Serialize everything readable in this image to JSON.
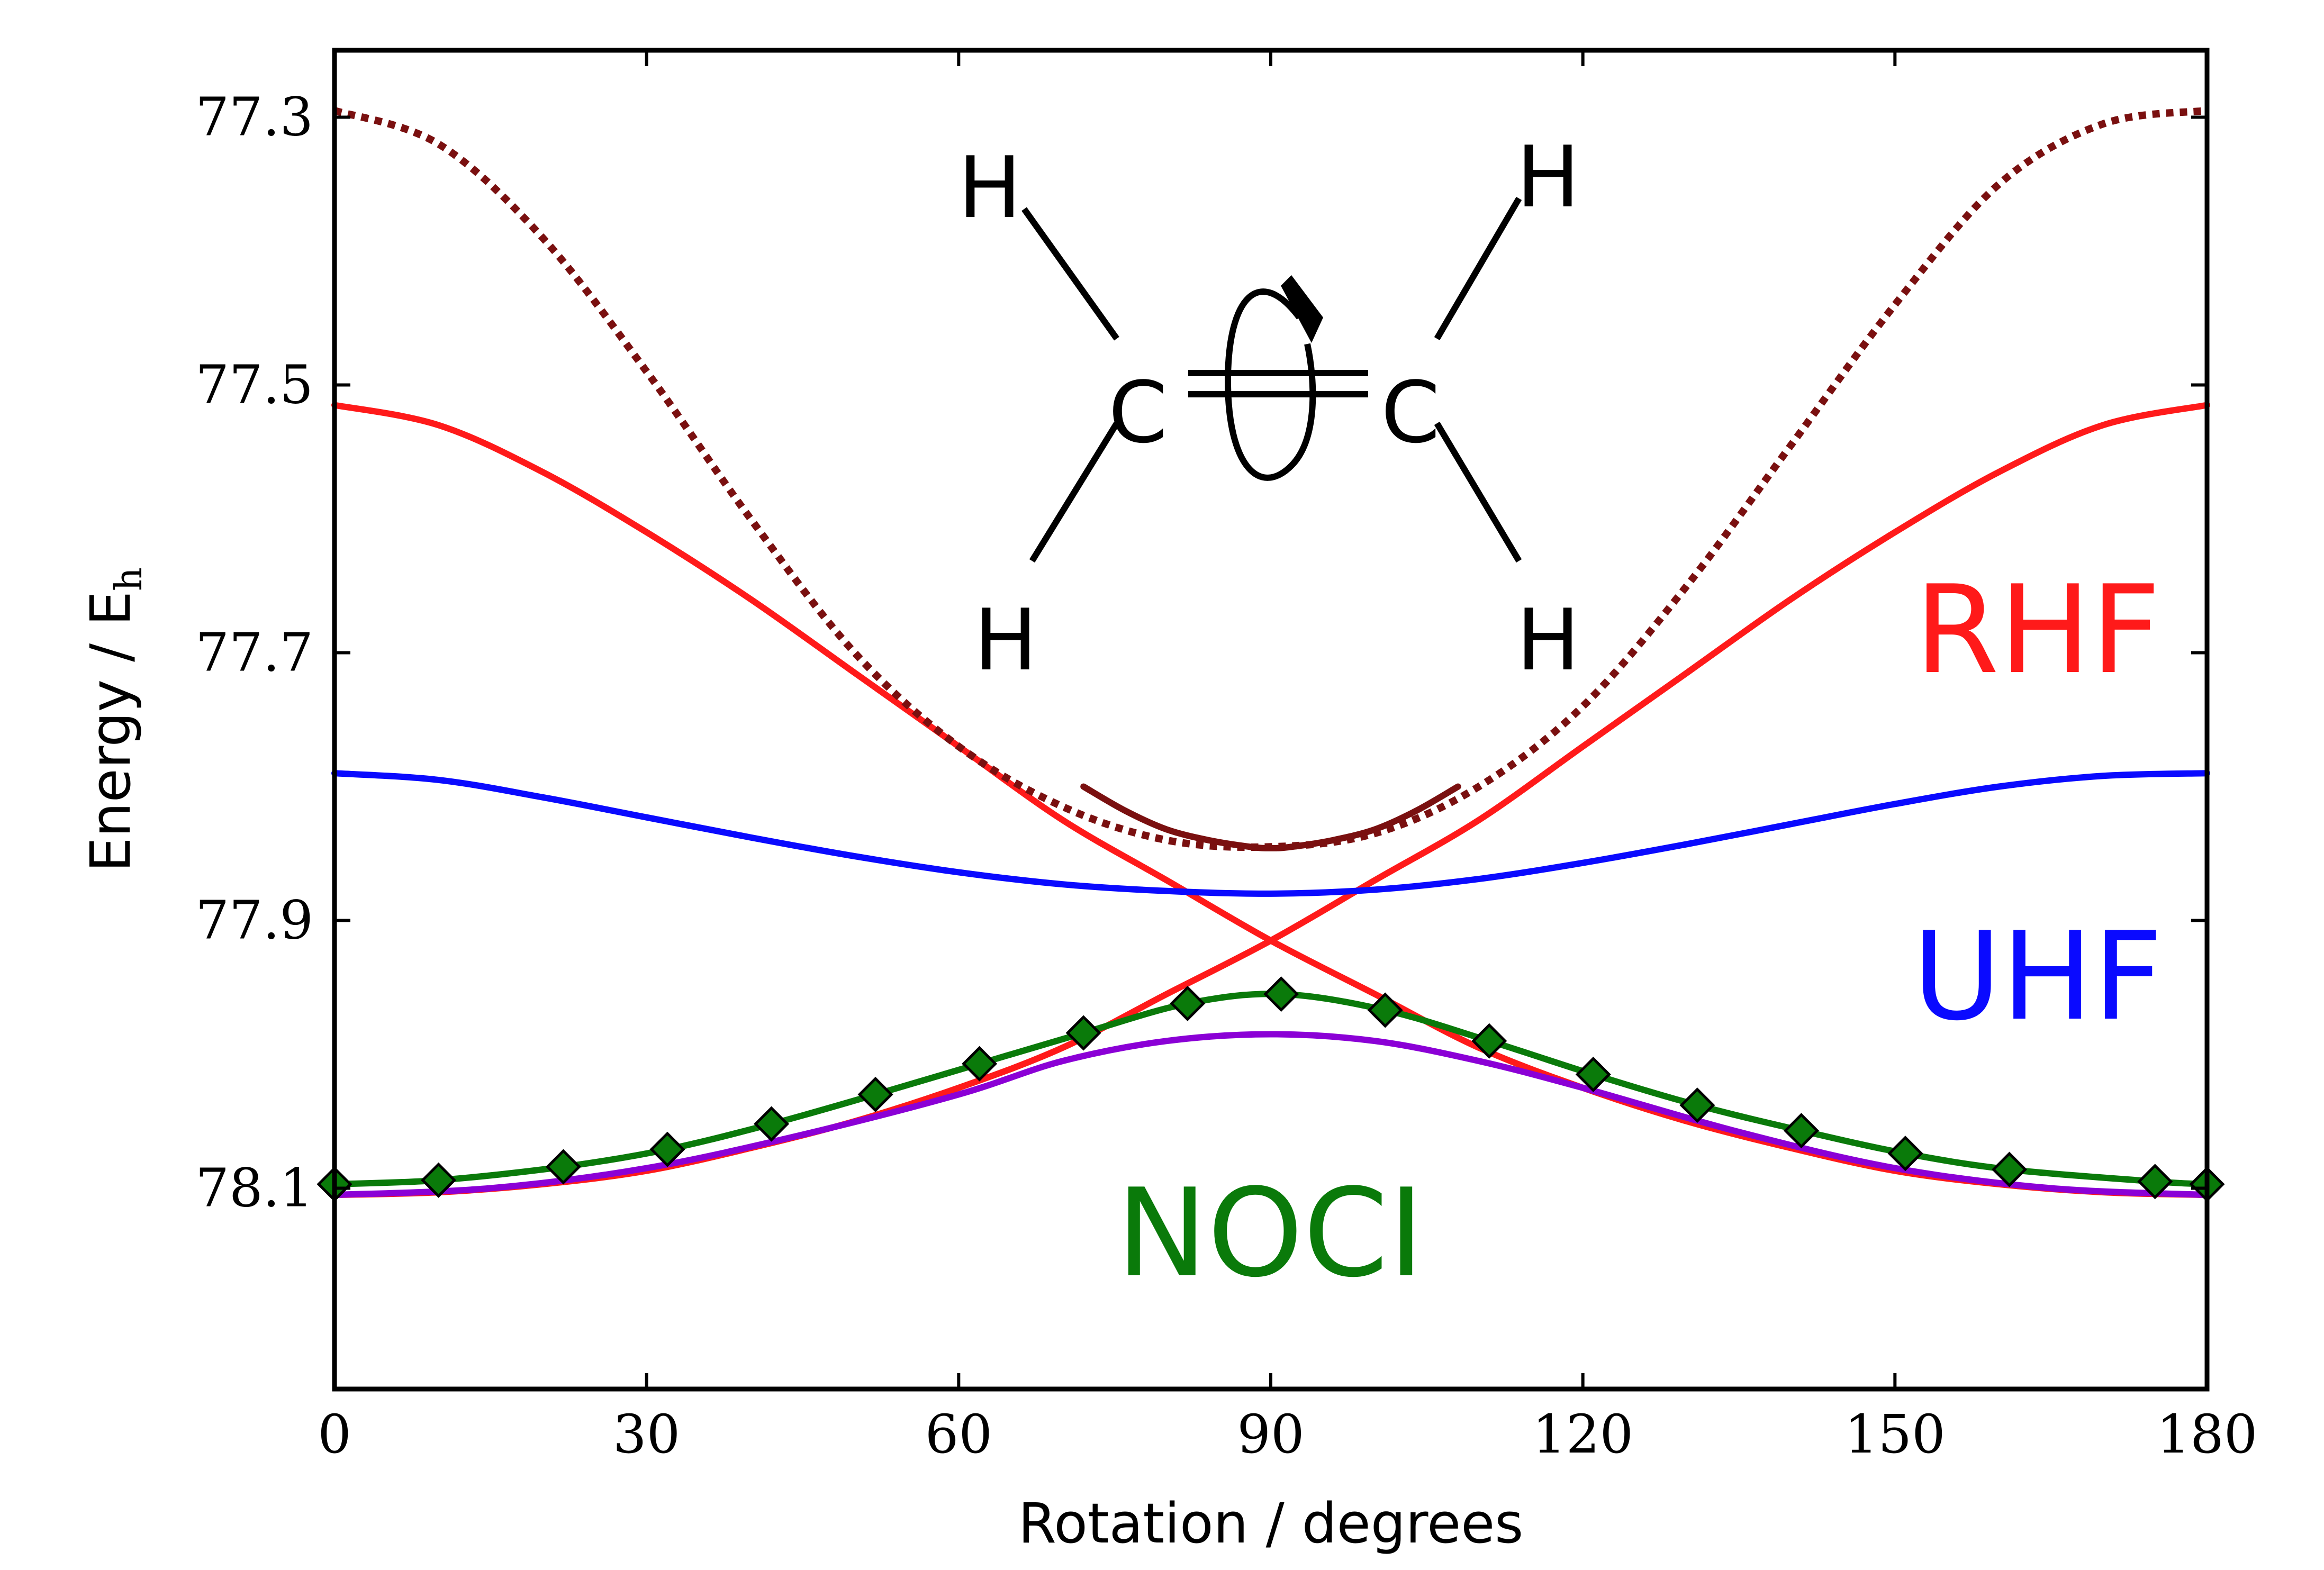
{
  "chart_data": {
    "type": "line",
    "title": "",
    "xlabel": "Rotation / degrees",
    "ylabel": "Energy / E",
    "ylabel_sub": "h",
    "xlim": [
      0,
      180
    ],
    "ylim": [
      78.25,
      77.25
    ],
    "y_inverted": true,
    "y_tick_format": "no-minus-sign",
    "xticks": [
      0,
      30,
      60,
      90,
      120,
      150,
      180
    ],
    "yticks": [
      77.3,
      77.5,
      77.7,
      77.9,
      78.1
    ],
    "grid": false,
    "molecule": {
      "atoms": [
        "H",
        "H",
        "C",
        "C",
        "H",
        "H"
      ]
    },
    "series": [
      {
        "name": "RHF",
        "color": "#ff1a1a",
        "style": "solid",
        "x": [
          0,
          10,
          20,
          30,
          40,
          50,
          60,
          70,
          80,
          90,
          100,
          110,
          120,
          130,
          140,
          150,
          160,
          170,
          180
        ],
        "y": [
          77.515,
          77.53,
          77.565,
          77.61,
          77.66,
          77.715,
          77.77,
          77.825,
          77.87,
          77.915,
          77.955,
          77.995,
          78.025,
          78.05,
          78.07,
          78.087,
          78.097,
          78.103,
          78.105
        ]
      },
      {
        "name": "",
        "color": "#ff1a1a",
        "style": "solid",
        "x": [
          0,
          10,
          20,
          30,
          40,
          50,
          60,
          70,
          80,
          90,
          100,
          110,
          120,
          130,
          140,
          150,
          160,
          170,
          180
        ],
        "y": [
          78.105,
          78.103,
          78.097,
          78.087,
          78.07,
          78.05,
          78.025,
          77.995,
          77.955,
          77.915,
          77.87,
          77.825,
          77.77,
          77.715,
          77.66,
          77.61,
          77.565,
          77.53,
          77.515
        ]
      },
      {
        "name": "",
        "color": "#7a1010",
        "style": "dotted",
        "x": [
          0,
          10,
          20,
          30,
          40,
          50,
          60,
          70,
          80,
          90,
          100,
          110,
          120,
          130,
          140,
          150,
          160,
          170,
          180
        ],
        "y": [
          77.295,
          77.32,
          77.39,
          77.49,
          77.6,
          77.7,
          77.77,
          77.815,
          77.84,
          77.845,
          77.835,
          77.8,
          77.74,
          77.65,
          77.545,
          77.44,
          77.35,
          77.305,
          77.295
        ]
      },
      {
        "name": "",
        "color": "#7a1010",
        "style": "solid",
        "x": [
          72,
          76,
          80,
          84,
          88,
          90,
          92,
          96,
          100,
          104,
          108
        ],
        "y": [
          77.8,
          77.818,
          77.832,
          77.84,
          77.845,
          77.846,
          77.845,
          77.84,
          77.832,
          77.818,
          77.8
        ]
      },
      {
        "name": "UHF",
        "color": "#0a0aff",
        "style": "solid",
        "x": [
          0,
          10,
          20,
          30,
          40,
          50,
          60,
          70,
          80,
          90,
          100,
          110,
          120,
          130,
          140,
          150,
          160,
          170,
          180
        ],
        "y": [
          77.79,
          77.795,
          77.808,
          77.823,
          77.838,
          77.852,
          77.864,
          77.873,
          77.878,
          77.88,
          77.877,
          77.869,
          77.857,
          77.843,
          77.828,
          77.813,
          77.8,
          77.792,
          77.79
        ]
      },
      {
        "name": "",
        "color": "#8b00d6",
        "style": "solid",
        "x": [
          0,
          15,
          30,
          45,
          60,
          70,
          80,
          90,
          100,
          110,
          120,
          135,
          150,
          165,
          180
        ],
        "y": [
          78.105,
          78.1,
          78.085,
          78.06,
          78.03,
          78.005,
          77.99,
          77.985,
          77.99,
          78.005,
          78.025,
          78.058,
          78.085,
          78.1,
          78.105
        ]
      },
      {
        "name": "NOCI",
        "color": "#0a7a0a",
        "style": "solid-marker",
        "x": [
          0,
          10,
          22,
          32,
          42,
          52,
          62,
          72,
          82,
          91,
          101,
          111,
          121,
          131,
          141,
          151,
          161,
          175,
          180
        ],
        "y": [
          78.097,
          78.094,
          78.084,
          78.071,
          78.052,
          78.03,
          78.007,
          77.984,
          77.962,
          77.955,
          77.967,
          77.99,
          78.015,
          78.038,
          78.057,
          78.074,
          78.086,
          78.095,
          78.097
        ]
      }
    ]
  }
}
